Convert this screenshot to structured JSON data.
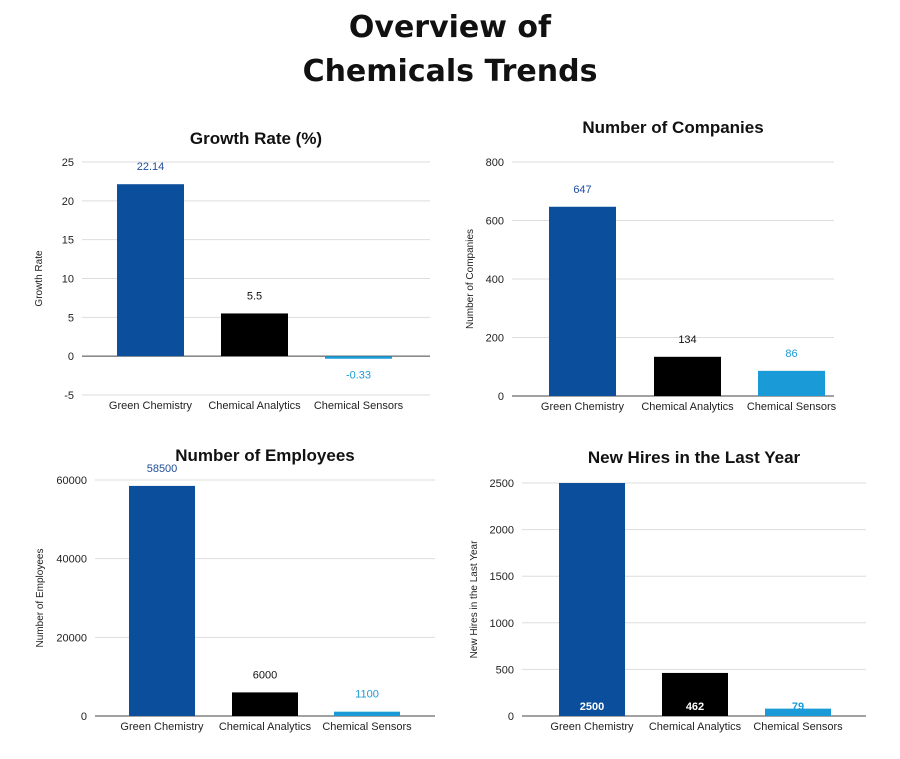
{
  "title": {
    "line1": "Overview of",
    "line2": "Chemicals Trends"
  },
  "colors": {
    "series": [
      "#0b4f9c",
      "#000000",
      "#1a9ad6"
    ],
    "labels": [
      "#1f4e9c",
      "#111111",
      "#1a9ad6"
    ],
    "grid": "#dddddd"
  },
  "chart_data": [
    {
      "type": "bar",
      "title": "Growth Rate (%)",
      "xlabel": "",
      "ylabel": "Growth Rate",
      "categories": [
        "Green Chemistry",
        "Chemical Analytics",
        "Chemical Sensors"
      ],
      "values": [
        22.14,
        5.5,
        -0.33
      ],
      "labels": [
        "22.14",
        "5.5",
        "-0.33"
      ],
      "ylim": [
        -5,
        25
      ],
      "yticks": [
        -5,
        0,
        5,
        10,
        15,
        20,
        25
      ],
      "label_position": "outside"
    },
    {
      "type": "bar",
      "title": "Number of Companies",
      "xlabel": "",
      "ylabel": "Number of Companies",
      "categories": [
        "Green Chemistry",
        "Chemical Analytics",
        "Chemical Sensors"
      ],
      "values": [
        647,
        134,
        86
      ],
      "labels": [
        "647",
        "134",
        "86"
      ],
      "ylim": [
        0,
        800
      ],
      "yticks": [
        0,
        200,
        400,
        600,
        800
      ],
      "label_position": "outside"
    },
    {
      "type": "bar",
      "title": "Number of Employees",
      "xlabel": "",
      "ylabel": "Number of Employees",
      "categories": [
        "Green Chemistry",
        "Chemical Analytics",
        "Chemical Sensors"
      ],
      "values": [
        58500,
        6000,
        1100
      ],
      "labels": [
        "58500",
        "6000",
        "1100"
      ],
      "ylim": [
        0,
        60000
      ],
      "yticks": [
        0,
        20000,
        40000,
        60000
      ],
      "label_position": "outside"
    },
    {
      "type": "bar",
      "title": "New Hires in the Last Year",
      "xlabel": "",
      "ylabel": "New Hires in the Last Year",
      "categories": [
        "Green Chemistry",
        "Chemical Analytics",
        "Chemical Sensors"
      ],
      "values": [
        2500,
        462,
        79
      ],
      "labels": [
        "2500",
        "462",
        "79"
      ],
      "ylim": [
        0,
        2500
      ],
      "yticks": [
        0,
        500,
        1000,
        1500,
        2000,
        2500
      ],
      "label_position": "inside-base"
    }
  ]
}
